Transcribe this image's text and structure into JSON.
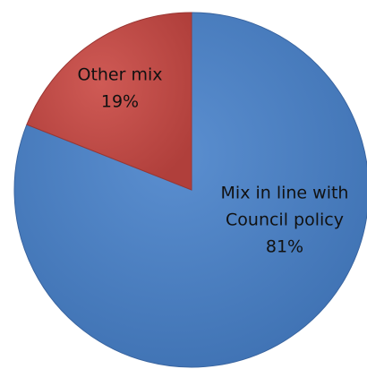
{
  "chart_data": {
    "type": "pie",
    "title": "",
    "slices": [
      {
        "label_lines": [
          "Mix in line with",
          "Council policy"
        ],
        "value": 81,
        "value_label": "81%",
        "color": "#4a7ebb",
        "edge_color": "#3a65a0"
      },
      {
        "label_lines": [
          "Other mix"
        ],
        "value": 19,
        "value_label": "19%",
        "color": "#be4b48",
        "edge_color": "#9a3633"
      }
    ],
    "start_angle_deg": 0,
    "direction": "clockwise",
    "data_labels_inside": true,
    "legend": "none"
  }
}
